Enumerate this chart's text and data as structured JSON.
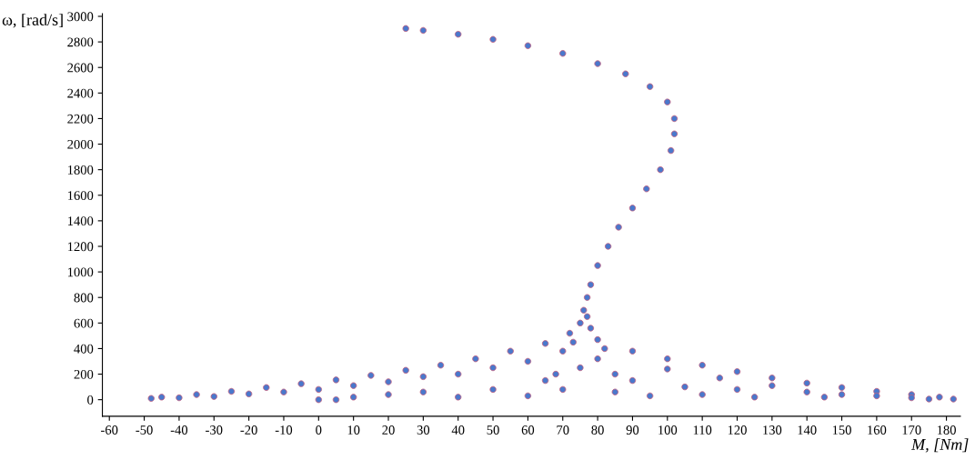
{
  "chart_data": {
    "type": "scatter",
    "xlabel": "M, [Nm]",
    "ylabel": "ω, [rad/s]",
    "xlim": [
      -62,
      184
    ],
    "ylim": [
      -130,
      3020
    ],
    "xticks": [
      -60,
      -50,
      -40,
      -30,
      -20,
      -10,
      0,
      10,
      20,
      30,
      40,
      50,
      60,
      70,
      80,
      90,
      100,
      110,
      120,
      130,
      140,
      150,
      160,
      170,
      180
    ],
    "yticks": [
      0,
      200,
      400,
      600,
      800,
      1000,
      1200,
      1400,
      1600,
      1800,
      2000,
      2200,
      2400,
      2600,
      2800,
      3000
    ],
    "grid": false,
    "marker": "circle",
    "series": [
      {
        "color": "#4a78cc",
        "x": [
          25,
          30,
          40,
          50,
          60,
          70,
          80,
          88,
          95,
          100,
          102,
          102,
          101,
          98,
          94,
          90,
          86,
          83,
          80,
          78,
          77,
          76,
          77,
          -45,
          -35,
          -25,
          -15,
          -5,
          5,
          15,
          25,
          35,
          45,
          55,
          65,
          72,
          80,
          90,
          100,
          110,
          120,
          130,
          140,
          150,
          160,
          170,
          178,
          182,
          -48,
          -40,
          -30,
          -20,
          -10,
          0,
          0,
          5,
          10,
          10,
          20,
          20,
          30,
          30,
          40,
          40,
          50,
          50,
          60,
          60,
          65,
          70,
          70,
          75,
          78,
          80,
          85,
          85,
          90,
          95,
          100,
          105,
          110,
          115,
          120,
          125,
          130,
          140,
          145,
          150,
          160,
          170,
          175,
          75,
          73,
          82,
          68
        ],
        "values": [
          2905,
          2890,
          2860,
          2820,
          2770,
          2710,
          2630,
          2550,
          2450,
          2330,
          2200,
          2080,
          1950,
          1800,
          1650,
          1500,
          1350,
          1200,
          1050,
          900,
          800,
          700,
          650,
          20,
          40,
          65,
          95,
          125,
          155,
          190,
          230,
          270,
          320,
          380,
          440,
          520,
          470,
          380,
          320,
          270,
          220,
          170,
          130,
          95,
          65,
          40,
          20,
          5,
          10,
          15,
          25,
          45,
          60,
          0,
          80,
          0,
          110,
          20,
          40,
          140,
          60,
          180,
          20,
          200,
          80,
          250,
          30,
          300,
          150,
          380,
          80,
          250,
          560,
          320,
          60,
          200,
          150,
          30,
          240,
          100,
          40,
          170,
          80,
          20,
          110,
          60,
          20,
          40,
          30,
          15,
          5,
          600,
          450,
          400,
          200
        ]
      }
    ]
  }
}
